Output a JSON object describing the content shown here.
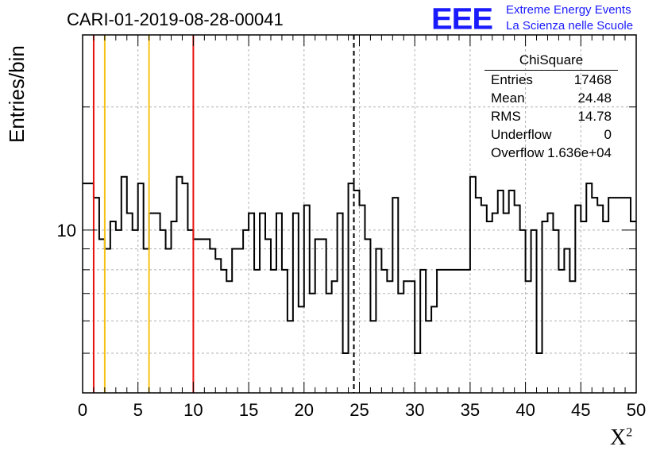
{
  "header": {
    "title": "CARI-01-2019-08-28-00041",
    "logo_mark": "EEE",
    "logo_line1": "Extreme Energy Events",
    "logo_line2": "La Scienza nelle Scuole"
  },
  "chart_data": {
    "type": "histogram",
    "xlabel": "X",
    "xlabel_superscript": "2",
    "ylabel": "Entries/bin",
    "yscale": "log",
    "xlim": [
      0,
      50
    ],
    "ylim": [
      4,
      30
    ],
    "x_ticks": [
      0,
      5,
      10,
      15,
      20,
      25,
      30,
      35,
      40,
      45,
      50
    ],
    "y_tick_labels": [
      {
        "value": 10,
        "label": "10"
      }
    ],
    "grid": true,
    "bin_width": 0.5,
    "bin_values": [
      13,
      13,
      12,
      9.5,
      9,
      10.5,
      10,
      13.5,
      11,
      10,
      13,
      9,
      11,
      11,
      10,
      9,
      10.5,
      13.5,
      13,
      10,
      9.5,
      9.5,
      9.5,
      9,
      8.5,
      8,
      7.5,
      9,
      9,
      10,
      11,
      8,
      11,
      9.5,
      8,
      11,
      8,
      6,
      11,
      6.5,
      11.5,
      7,
      9.5,
      9.5,
      7,
      7.5,
      11,
      5,
      13,
      12.5,
      11.5,
      9.5,
      6,
      9,
      8,
      7.5,
      12,
      7,
      7.5,
      7.5,
      5,
      8,
      6,
      6.5,
      8,
      8,
      8,
      8,
      8,
      8,
      13.5,
      12,
      11.5,
      10.5,
      11,
      12.5,
      11,
      12.5,
      11.5,
      10,
      7.5,
      10,
      5,
      10.5,
      11,
      10,
      8,
      9,
      7.5,
      11.5,
      10.5,
      13,
      12,
      11.5,
      10.5,
      12,
      12,
      12,
      12,
      10.5
    ],
    "vlines": [
      {
        "x": 1,
        "color": "#e8130e",
        "style": "solid"
      },
      {
        "x": 2,
        "color": "#f5c116",
        "style": "solid"
      },
      {
        "x": 6,
        "color": "#f5c116",
        "style": "solid"
      },
      {
        "x": 10,
        "color": "#e8130e",
        "style": "solid"
      },
      {
        "x": 24.5,
        "color": "#000000",
        "style": "dashed"
      }
    ],
    "stats_box": {
      "title": "ChiSquare",
      "rows": [
        {
          "key": "Entries",
          "value": "17468"
        },
        {
          "key": "Mean",
          "value": "24.48"
        },
        {
          "key": "RMS",
          "value": "14.78"
        },
        {
          "key": "Underflow",
          "value": "0"
        },
        {
          "key": "Overflow",
          "value": "1.636e+04"
        }
      ]
    }
  }
}
